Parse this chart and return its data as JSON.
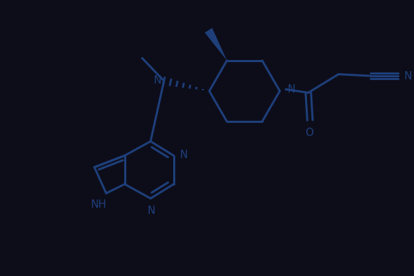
{
  "background_color": "#0d0d1a",
  "line_color": "#1e3f7a",
  "line_width": 2.2,
  "text_color": "#1e3f7a",
  "font_size": 11,
  "figsize": [
    6.0,
    4.0
  ],
  "dpi": 100,
  "xlim": [
    0,
    12
  ],
  "ylim": [
    0,
    8
  ]
}
